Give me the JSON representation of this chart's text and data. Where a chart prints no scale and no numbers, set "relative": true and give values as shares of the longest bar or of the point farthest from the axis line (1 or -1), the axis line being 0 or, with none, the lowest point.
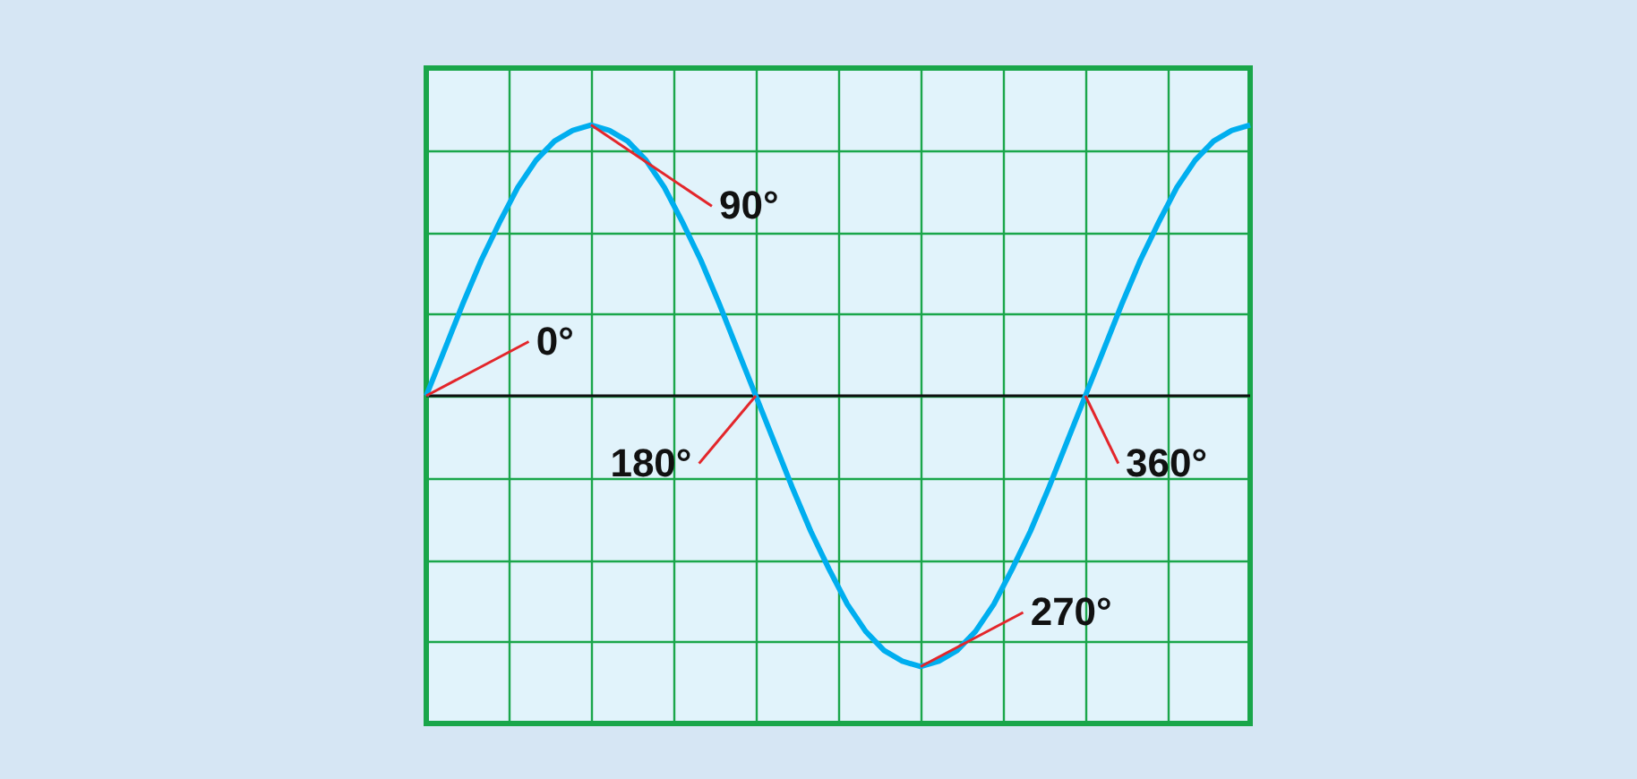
{
  "chart_data": {
    "type": "line",
    "relative": true,
    "categories": [
      null,
      null,
      null,
      null,
      null,
      null,
      null,
      null,
      null,
      null,
      null,
      null,
      null,
      null,
      null,
      null,
      null,
      null,
      null,
      null,
      null,
      null,
      null,
      null,
      null,
      null,
      null,
      null,
      null,
      null,
      null,
      null,
      null,
      null,
      null,
      null,
      null,
      null,
      null,
      null,
      null,
      null,
      null,
      null,
      null,
      null
    ],
    "series": [
      {
        "color": "#00aeef",
        "values": [
          0,
          0.17,
          0.34,
          0.5,
          0.64,
          0.77,
          0.87,
          0.94,
          0.98,
          1,
          0.98,
          0.94,
          0.87,
          0.77,
          0.64,
          0.5,
          0.34,
          0.17,
          0,
          -0.17,
          -0.34,
          -0.5,
          -0.64,
          -0.77,
          -0.87,
          -0.94,
          -0.98,
          -1,
          -0.98,
          -0.94,
          -0.87,
          -0.77,
          -0.64,
          -0.5,
          -0.34,
          -0.17,
          0,
          0.17,
          0.34,
          0.5,
          0.64,
          0.77,
          0.87,
          0.94,
          0.98,
          1
        ]
      }
    ],
    "grid": true,
    "annotations": [
      "0°",
      "90°",
      "180°",
      "270°",
      "360°"
    ]
  }
}
